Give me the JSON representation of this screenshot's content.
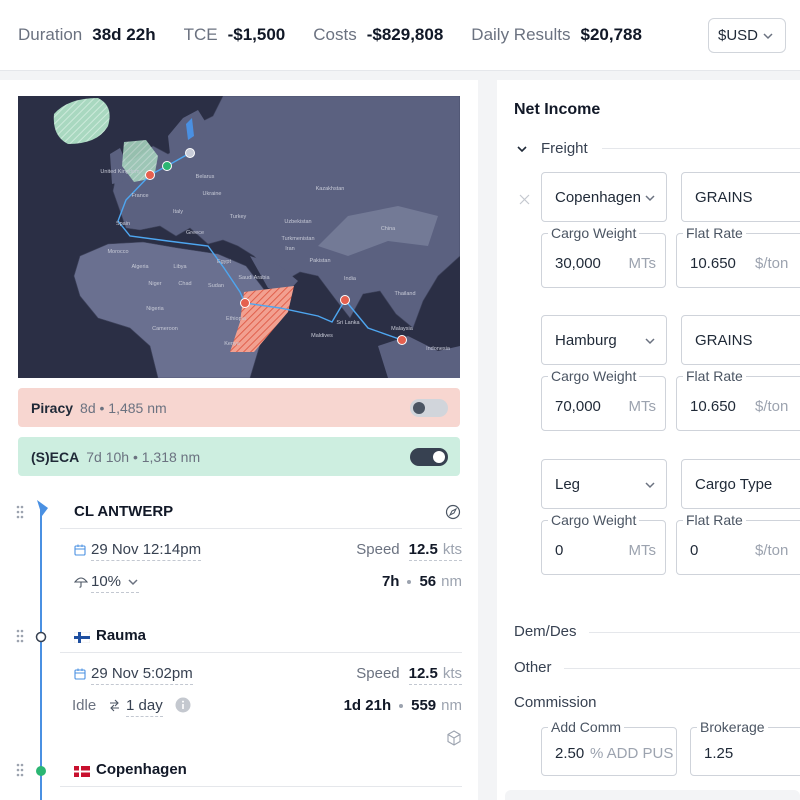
{
  "header": {
    "stats": [
      {
        "label": "Duration",
        "value": "38d 22h"
      },
      {
        "label": "TCE",
        "value": "-$1,500"
      },
      {
        "label": "Costs",
        "value": "-$829,808"
      },
      {
        "label": "Daily Results",
        "value": "$20,788"
      }
    ],
    "currency": "$USD"
  },
  "map": {
    "labels": [
      "United Kingdom",
      "France",
      "Spain",
      "Italy",
      "Belarus",
      "Ukraine",
      "Greece",
      "Turkey",
      "Kazakhstan",
      "Uzbekistan",
      "Turkmenistan",
      "Morocco",
      "Algeria",
      "Libya",
      "Egypt",
      "Saudi Arabia",
      "Iran",
      "Pakistan",
      "India",
      "Niger",
      "Chad",
      "Sudan",
      "Nigeria",
      "Cameroon",
      "Ethiopia",
      "Kenya",
      "Sri Lanka",
      "Maldives",
      "Thailand",
      "Malaysia",
      "Indonesia",
      "China"
    ]
  },
  "zones": [
    {
      "name": "Piracy",
      "detail": "8d • 1,485 nm",
      "enabled": false
    },
    {
      "name": "(S)ECA",
      "detail": "7d 10h • 1,318 nm",
      "enabled": true
    }
  ],
  "ports": [
    {
      "name": "CL ANTWERP",
      "date": "29 Nov 12:14pm",
      "speed_label": "Speed",
      "speed": "12.5",
      "speed_unit": "kts",
      "weather": "10%",
      "time": "7h",
      "distance": "56",
      "distance_unit": "nm"
    },
    {
      "flag": "fi",
      "name": "Rauma",
      "date": "29 Nov 5:02pm",
      "speed_label": "Speed",
      "speed": "12.5",
      "speed_unit": "kts",
      "idle_label": "Idle",
      "idle": "1 day",
      "time": "1d 21h",
      "distance": "559",
      "distance_unit": "nm"
    },
    {
      "flag": "dk",
      "name": "Copenhagen"
    }
  ],
  "net_income": {
    "title": "Net Income",
    "freight": {
      "title": "Freight",
      "rows": [
        {
          "port": "Copenhagen",
          "cargo": "GRAINS",
          "weight_label": "Cargo Weight",
          "weight": "30,000",
          "weight_unit": "MTs",
          "rate_label": "Flat Rate",
          "rate": "10.650",
          "rate_unit": "$/ton"
        },
        {
          "port": "Hamburg",
          "cargo": "GRAINS",
          "weight_label": "Cargo Weight",
          "weight": "70,000",
          "weight_unit": "MTs",
          "rate_label": "Flat Rate",
          "rate": "10.650",
          "rate_unit": "$/ton"
        },
        {
          "port": "Leg",
          "cargo": "Cargo Type",
          "weight_label": "Cargo Weight",
          "weight": "0",
          "weight_unit": "MTs",
          "rate_label": "Flat Rate",
          "rate": "0",
          "rate_unit": "$/ton"
        }
      ]
    },
    "sections": [
      "Dem/Des",
      "Other",
      "Commission"
    ],
    "commission": {
      "add_comm_label": "Add Comm",
      "add_comm": "2.50",
      "add_comm_unit": "% ADD PUS",
      "brokerage_label": "Brokerage",
      "brokerage": "1.25"
    }
  }
}
